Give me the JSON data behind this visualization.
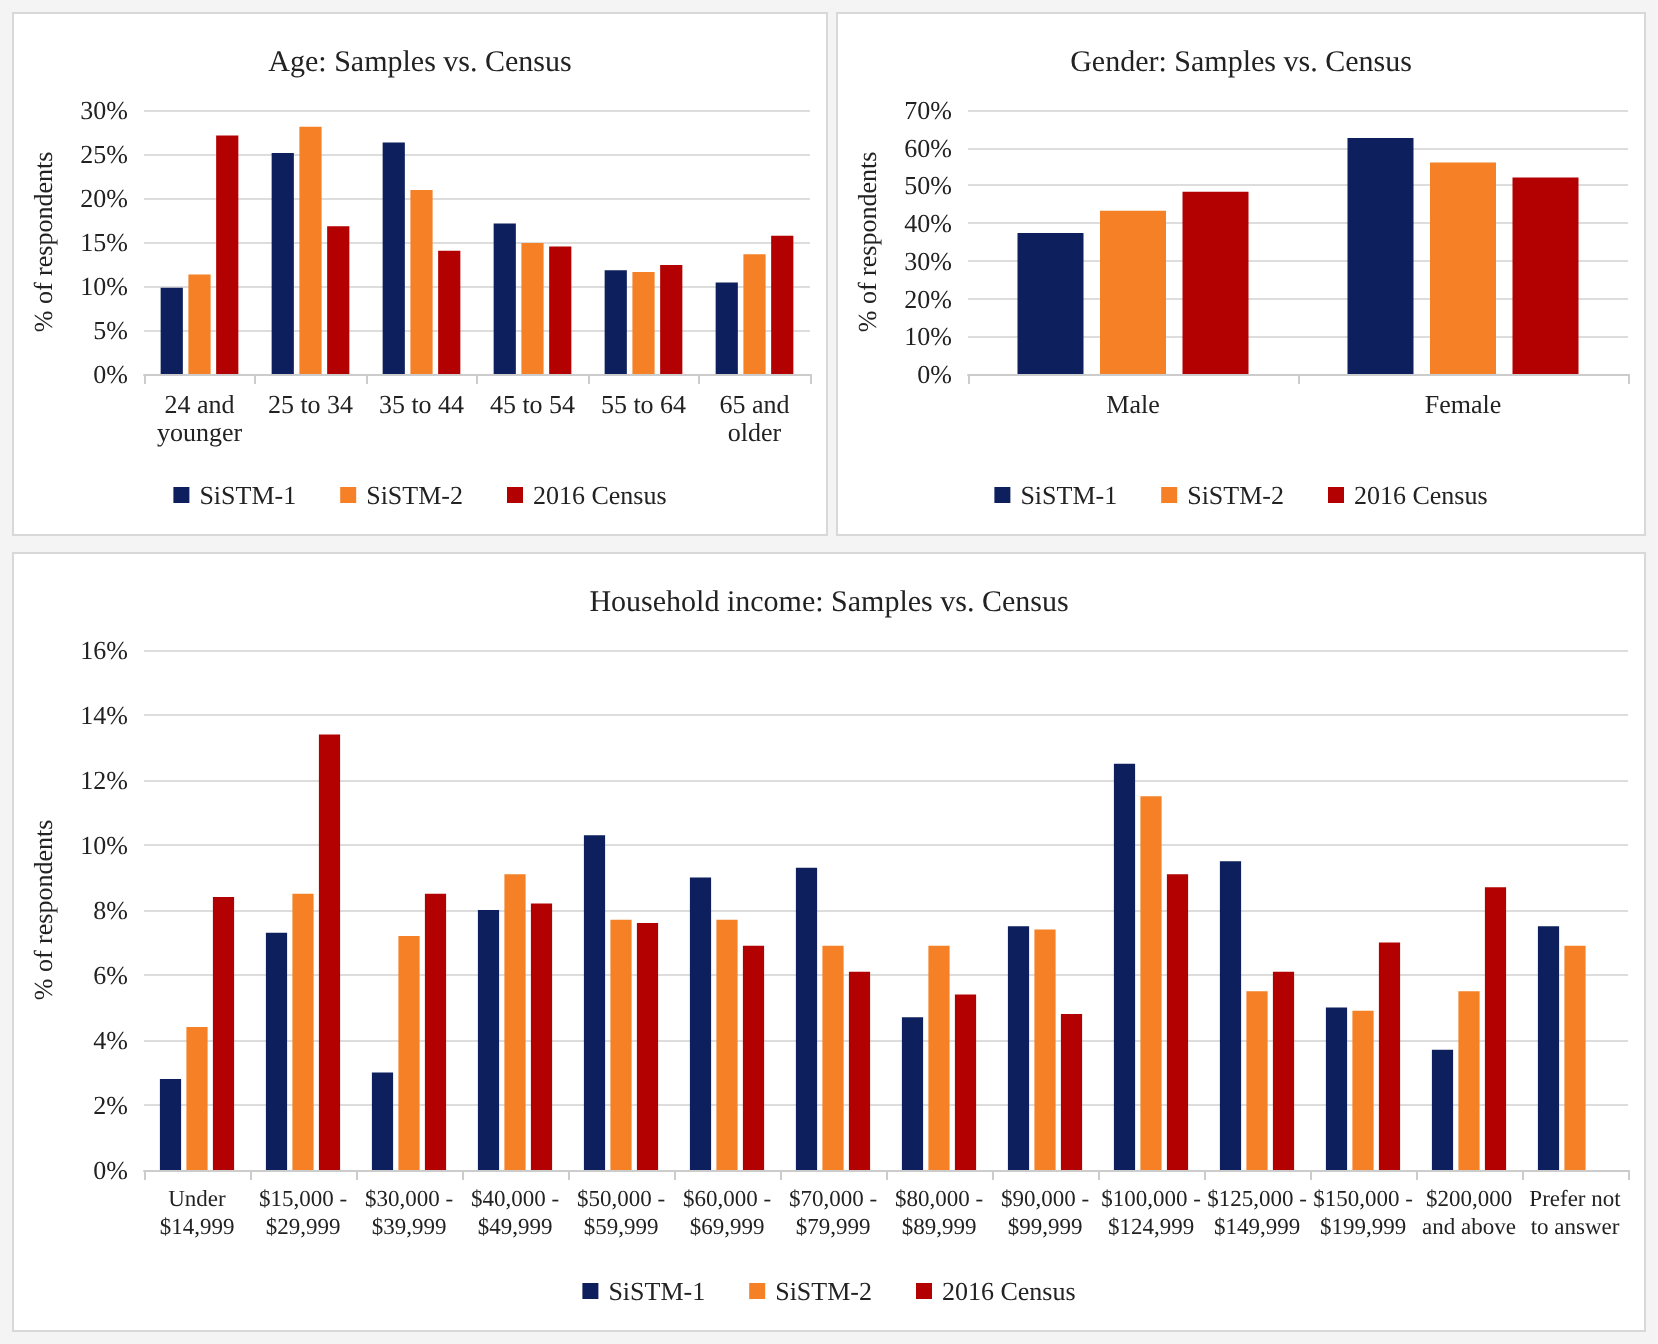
{
  "chart_data": [
    {
      "type": "bar",
      "title": "Age: Samples vs. Census",
      "ylabel": "% of respondents",
      "categories": [
        "24 and younger",
        "25 to 34",
        "35 to 44",
        "45 to 54",
        "55 to 64",
        "65 and older"
      ],
      "series": [
        {
          "name": "SiSTM-1",
          "color": "#0d1f5c",
          "values": [
            9.8,
            25.1,
            26.3,
            17.1,
            11.8,
            10.4
          ]
        },
        {
          "name": "SiSTM-2",
          "color": "#f58025",
          "values": [
            11.3,
            28.1,
            20.9,
            14.9,
            11.6,
            13.6
          ]
        },
        {
          "name": "2016 Census",
          "color": "#b30000",
          "values": [
            27.1,
            16.8,
            14.0,
            14.5,
            12.4,
            15.7
          ]
        }
      ],
      "ylim": [
        0,
        30
      ],
      "yticks": [
        {
          "value": 0,
          "label": "0%"
        },
        {
          "value": 5,
          "label": "5%"
        },
        {
          "value": 10,
          "label": "10%"
        },
        {
          "value": 15,
          "label": "15%"
        },
        {
          "value": 20,
          "label": "20%"
        },
        {
          "value": 25,
          "label": "25%"
        },
        {
          "value": 30,
          "label": "30%"
        }
      ],
      "grid": "y",
      "legend": "bottom"
    },
    {
      "type": "bar",
      "title": "Gender: Samples vs. Census",
      "ylabel": "% of respondents",
      "categories": [
        "Male",
        "Female"
      ],
      "series": [
        {
          "name": "SiSTM-1",
          "color": "#0d1f5c",
          "values": [
            37.4,
            62.6
          ]
        },
        {
          "name": "SiSTM-2",
          "color": "#f58025",
          "values": [
            43.3,
            56.1
          ]
        },
        {
          "name": "2016 Census",
          "color": "#b30000",
          "values": [
            48.3,
            52.1
          ]
        }
      ],
      "ylim": [
        0,
        70
      ],
      "yticks": [
        {
          "value": 0,
          "label": "0%"
        },
        {
          "value": 10,
          "label": "10%"
        },
        {
          "value": 20,
          "label": "20%"
        },
        {
          "value": 30,
          "label": "30%"
        },
        {
          "value": 40,
          "label": "40%"
        },
        {
          "value": 50,
          "label": "50%"
        },
        {
          "value": 60,
          "label": "60%"
        },
        {
          "value": 70,
          "label": "70%"
        }
      ],
      "grid": "y",
      "legend": "bottom"
    },
    {
      "type": "bar",
      "title": "Household income: Samples vs. Census",
      "ylabel": "% of respondents",
      "categories": [
        "Under $14,999",
        "$15,000 - $29,999",
        "$30,000 - $39,999",
        "$40,000 - $49,999",
        "$50,000 - $59,999",
        "$60,000 - $69,999",
        "$70,000 - $79,999",
        "$80,000 - $89,999",
        "$90,000 - $99,999",
        "$100,000 - $124,999",
        "$125,000 - $149,999",
        "$150,000 - $199,999",
        "$200,000 and above",
        "Prefer not to answer"
      ],
      "series": [
        {
          "name": "SiSTM-1",
          "color": "#0d1f5c",
          "values": [
            2.8,
            7.3,
            3.0,
            8.0,
            10.3,
            9.0,
            9.3,
            4.7,
            7.5,
            12.5,
            9.5,
            5.0,
            3.7,
            7.5
          ]
        },
        {
          "name": "SiSTM-2",
          "color": "#f58025",
          "values": [
            4.4,
            8.5,
            7.2,
            9.1,
            7.7,
            7.7,
            6.9,
            6.9,
            7.4,
            11.5,
            5.5,
            4.9,
            5.5,
            6.9
          ]
        },
        {
          "name": "2016 Census",
          "color": "#b30000",
          "values": [
            8.4,
            13.4,
            8.5,
            8.2,
            7.6,
            6.9,
            6.1,
            5.4,
            4.8,
            9.1,
            6.1,
            7.0,
            8.7,
            null
          ]
        }
      ],
      "ylim": [
        0,
        16
      ],
      "yticks": [
        {
          "value": 0,
          "label": "0%"
        },
        {
          "value": 2,
          "label": "2%"
        },
        {
          "value": 4,
          "label": "4%"
        },
        {
          "value": 6,
          "label": "6%"
        },
        {
          "value": 8,
          "label": "8%"
        },
        {
          "value": 10,
          "label": "10%"
        },
        {
          "value": 12,
          "label": "12%"
        },
        {
          "value": 14,
          "label": "14%"
        },
        {
          "value": 16,
          "label": "16%"
        }
      ],
      "grid": "y",
      "legend": "bottom"
    }
  ]
}
